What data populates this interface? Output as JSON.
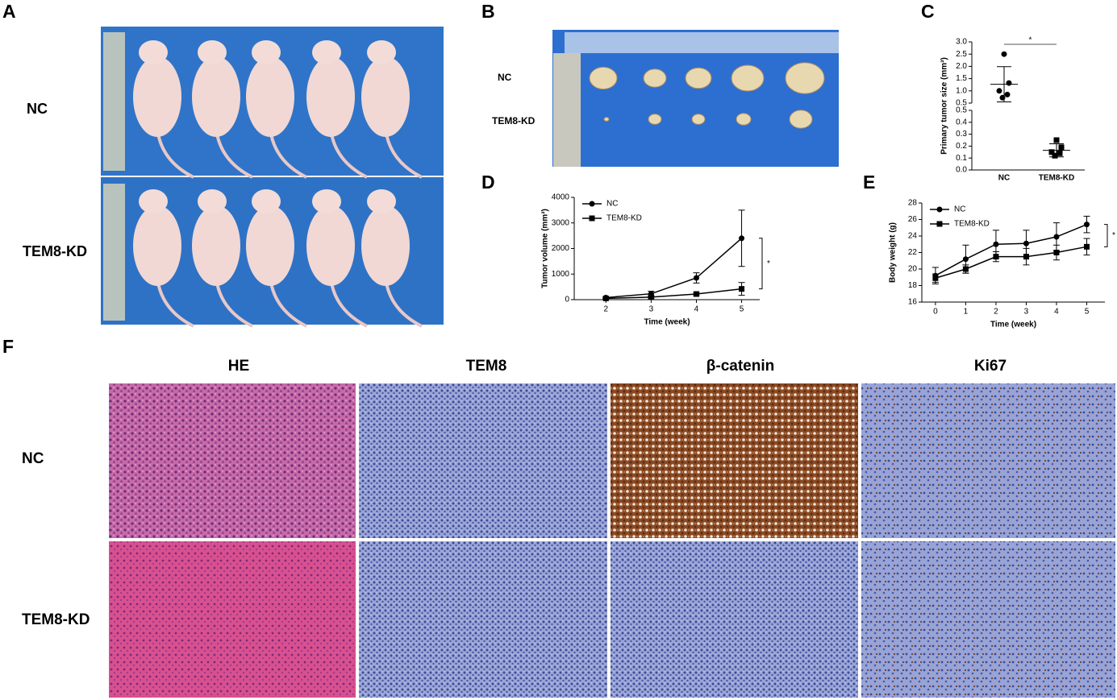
{
  "panels": [
    "A",
    "B",
    "C",
    "D",
    "E",
    "F"
  ],
  "panel_a": {
    "row_labels": [
      "NC",
      "TEM8-KD"
    ]
  },
  "panel_b": {
    "row_labels": [
      "NC",
      "TEM8-KD"
    ]
  },
  "panel_f": {
    "column_labels": [
      "HE",
      "TEM8",
      "β-catenin",
      "Ki67"
    ],
    "row_labels": [
      "NC",
      "TEM8-KD"
    ]
  },
  "chart_data": [
    {
      "type": "scatter",
      "y_label": "Primary tumor size (mm³)",
      "categories": [
        "NC",
        "TEM8-KD"
      ],
      "color": "#000000",
      "groups": [
        {
          "marker": "circle",
          "values": [
            2.5,
            1.32,
            1.0,
            0.72,
            0.85
          ],
          "mean": 1.27,
          "error": 0.72
        },
        {
          "marker": "square",
          "values": [
            0.25,
            0.19,
            0.15,
            0.12,
            0.14
          ],
          "mean": 0.165,
          "error": 0.055
        }
      ],
      "segments": [
        {
          "ylim": [
            0,
            0.5
          ],
          "yticks": [
            {
              "value": 0,
              "label": "0.0"
            },
            0.1,
            0.2,
            0.3,
            0.4,
            0.5
          ]
        },
        {
          "ylim": [
            0.5,
            3.0
          ],
          "yticks": [
            0.5,
            {
              "value": 1,
              "label": "1.0"
            },
            1.5,
            {
              "value": 2,
              "label": "2.0"
            },
            2.5,
            {
              "value": 3,
              "label": "3.0"
            }
          ]
        }
      ],
      "annotation": "*"
    },
    {
      "type": "line",
      "x_label": "Time (week)",
      "y_label": "Tumor volume (mm³)",
      "x": [
        2,
        3,
        4,
        5
      ],
      "series": [
        {
          "name": "NC",
          "marker": "circle",
          "color": "#000000",
          "values": [
            80,
            230,
            850,
            2400
          ],
          "errors": [
            30,
            100,
            200,
            1100
          ]
        },
        {
          "name": "TEM8-KD",
          "marker": "square",
          "color": "#000000",
          "values": [
            50,
            100,
            220,
            420
          ],
          "errors": [
            20,
            60,
            60,
            250
          ]
        }
      ],
      "xlim": [
        1.3,
        5.4
      ],
      "xticks": [
        2,
        3,
        4,
        5
      ],
      "ylim": [
        0,
        4000
      ],
      "yticks": [
        0,
        1000,
        2000,
        3000,
        4000
      ],
      "legend": "upper left",
      "annotation": "*"
    },
    {
      "type": "line",
      "x_label": "Time (week)",
      "y_label": "Body weight (g)",
      "x": [
        0,
        1,
        2,
        3,
        4,
        5
      ],
      "series": [
        {
          "name": "NC",
          "marker": "circle",
          "color": "#000000",
          "values": [
            19.2,
            21.2,
            23.0,
            23.1,
            23.9,
            25.4
          ],
          "errors": [
            1.0,
            1.7,
            1.7,
            1.6,
            1.7,
            1.0
          ]
        },
        {
          "name": "TEM8-KD",
          "marker": "square",
          "color": "#000000",
          "values": [
            18.9,
            20.0,
            21.5,
            21.5,
            22.0,
            22.7
          ],
          "errors": [
            0.5,
            0.5,
            0.6,
            1.0,
            0.9,
            1.0
          ]
        }
      ],
      "xlim": [
        -0.45,
        5.6
      ],
      "xticks": [
        0,
        1,
        2,
        3,
        4,
        5
      ],
      "ylim": [
        16,
        28
      ],
      "yticks": [
        16,
        18,
        20,
        22,
        24,
        26,
        28
      ],
      "legend": "upper left",
      "annotation": "*"
    }
  ]
}
